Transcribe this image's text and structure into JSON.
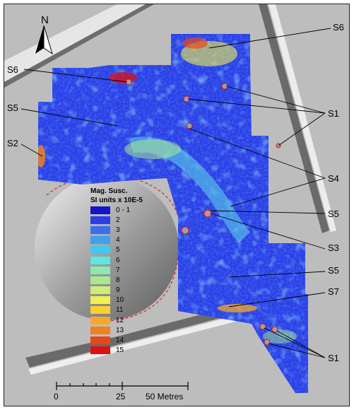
{
  "north_label": "N",
  "site_labels": [
    {
      "id": "s6-top-right",
      "text": "S6"
    },
    {
      "id": "s6-left",
      "text": "S6"
    },
    {
      "id": "s5-left",
      "text": "S5"
    },
    {
      "id": "s2-left",
      "text": "S2"
    },
    {
      "id": "s1-right-upper",
      "text": "S1"
    },
    {
      "id": "s4-right",
      "text": "S4"
    },
    {
      "id": "s5-right-upper",
      "text": "S5"
    },
    {
      "id": "s3-right",
      "text": "S3"
    },
    {
      "id": "s5-right-lower",
      "text": "S5"
    },
    {
      "id": "s7-right",
      "text": "S7"
    },
    {
      "id": "s1-right-lower",
      "text": "S1"
    }
  ],
  "legend": {
    "title_line1": "Mag. Susc.",
    "title_line2": "SI units x 10E-5",
    "items": [
      {
        "label": "0 - 1",
        "color": "#1414c8"
      },
      {
        "label": "2",
        "color": "#2a3ee6"
      },
      {
        "label": "3",
        "color": "#3a6ef0"
      },
      {
        "label": "4",
        "color": "#3fa0f0"
      },
      {
        "label": "5",
        "color": "#40c8f0"
      },
      {
        "label": "6",
        "color": "#5ae8e0"
      },
      {
        "label": "7",
        "color": "#8ce8b4"
      },
      {
        "label": "8",
        "color": "#a8e890"
      },
      {
        "label": "9",
        "color": "#d0ec78"
      },
      {
        "label": "10",
        "color": "#f0f050"
      },
      {
        "label": "11",
        "color": "#f8d030"
      },
      {
        "label": "12",
        "color": "#f8a828"
      },
      {
        "label": "13",
        "color": "#f08020"
      },
      {
        "label": "14",
        "color": "#e84818"
      },
      {
        "label": "15",
        "color": "#e01010"
      }
    ]
  },
  "scale_bar": {
    "labels": [
      "0",
      "25",
      "50 Metres"
    ]
  },
  "colors": {
    "survey_low": "#2a3ee6",
    "survey_high": "#e01010",
    "hillshade": "#b9b9b9"
  }
}
